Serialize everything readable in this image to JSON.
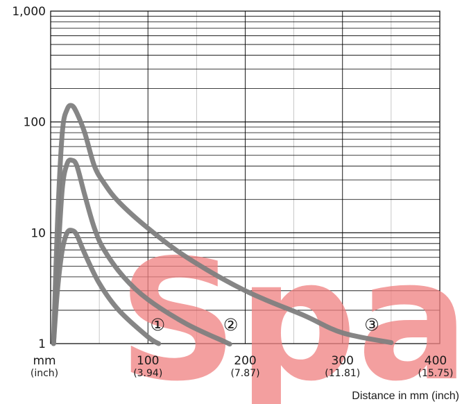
{
  "chart_data": {
    "type": "line",
    "yscale": "log",
    "xlim": [
      0,
      400
    ],
    "ylim": [
      1,
      1000
    ],
    "grid": true,
    "xlabel": "Distance in mm (inch)",
    "ylabel": "",
    "x_unit_label": "mm",
    "x_unit_sub_label": "(inch)",
    "x_ticks": [
      {
        "value": 100,
        "label": "100",
        "sub": "(3.94)"
      },
      {
        "value": 200,
        "label": "200",
        "sub": "(7.87)"
      },
      {
        "value": 300,
        "label": "300",
        "sub": "(11.81)"
      },
      {
        "value": 400,
        "label": "400",
        "sub": "(15.75)"
      }
    ],
    "y_ticks": [
      {
        "value": 1,
        "label": "1"
      },
      {
        "value": 10,
        "label": "10"
      },
      {
        "value": 100,
        "label": "100"
      },
      {
        "value": 1000,
        "label": "1,000"
      }
    ],
    "series": [
      {
        "name": "①",
        "color": "#808080",
        "x": [
          3,
          7,
          12,
          17,
          22,
          27,
          35,
          50,
          70,
          100,
          111
        ],
        "y": [
          1,
          3,
          7,
          10,
          10.5,
          9.5,
          6.5,
          3.5,
          2,
          1.15,
          1
        ]
      },
      {
        "name": "②",
        "color": "#808080",
        "x": [
          3,
          7,
          12,
          17,
          22,
          27,
          35,
          45,
          55,
          75,
          100,
          140,
          180,
          183
        ],
        "y": [
          1,
          5,
          25,
          42,
          45,
          40,
          22,
          11,
          7,
          4,
          2.5,
          1.5,
          1.03,
          1
        ]
      },
      {
        "name": "③",
        "color": "#808080",
        "x": [
          3,
          7,
          12,
          17,
          22,
          27,
          35,
          45,
          55,
          70,
          100,
          140,
          200,
          260,
          300,
          350
        ],
        "y": [
          1,
          12,
          80,
          130,
          140,
          120,
          80,
          40,
          28,
          19,
          11,
          6,
          3,
          1.8,
          1.25,
          1.02
        ]
      }
    ],
    "watermark": "Spare"
  }
}
